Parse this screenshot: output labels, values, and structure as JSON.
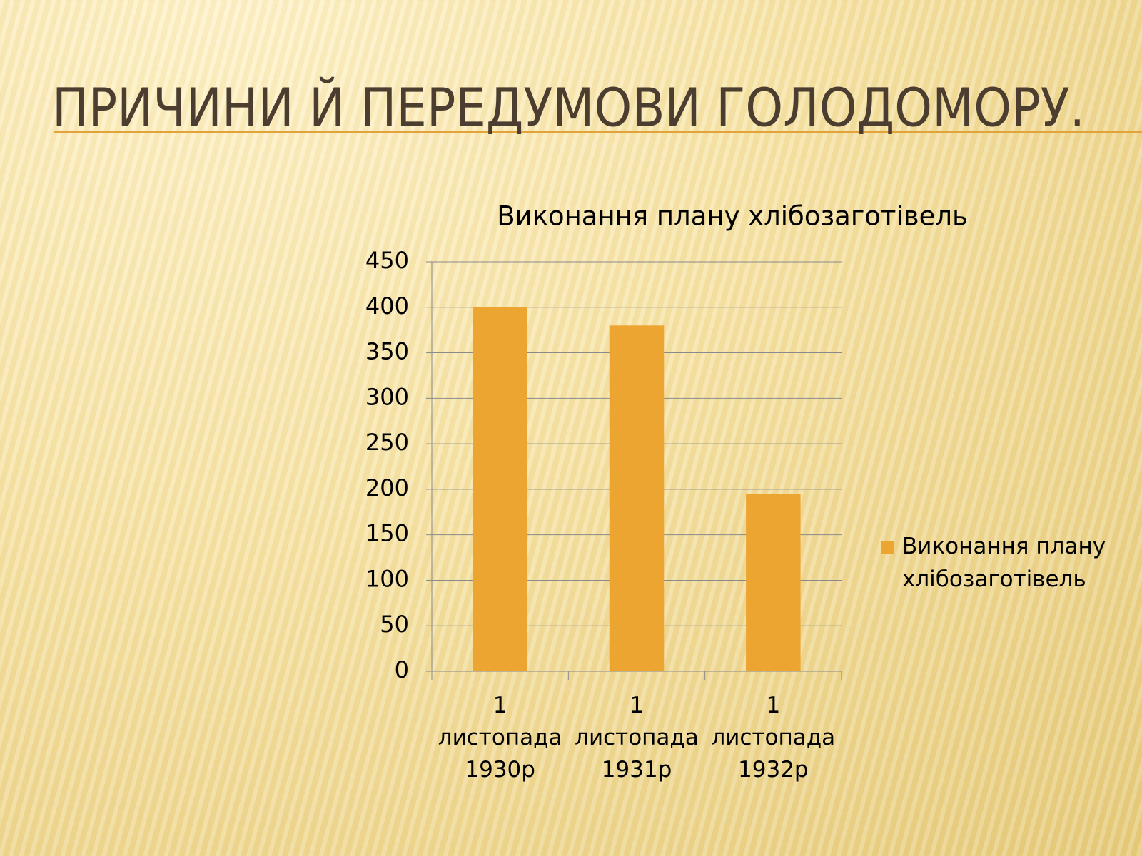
{
  "title": "ПРИЧИНИ Й ПЕРЕДУМОВИ ГОЛОДОМОРУ.",
  "chart_data": {
    "type": "bar",
    "title": "Виконання плану хлібозаготівель",
    "categories": [
      "1 листопада 1930р",
      "1 листопада 1931р",
      "1 листопада 1932р"
    ],
    "series": [
      {
        "name": "Виконання плану хлібозаготівель",
        "color": "#eda532",
        "values": [
          400,
          380,
          195
        ]
      }
    ],
    "ylim": [
      0,
      450
    ],
    "yticks": [
      0,
      50,
      100,
      150,
      200,
      250,
      300,
      350,
      400,
      450
    ],
    "grid": true,
    "legend": "right"
  }
}
